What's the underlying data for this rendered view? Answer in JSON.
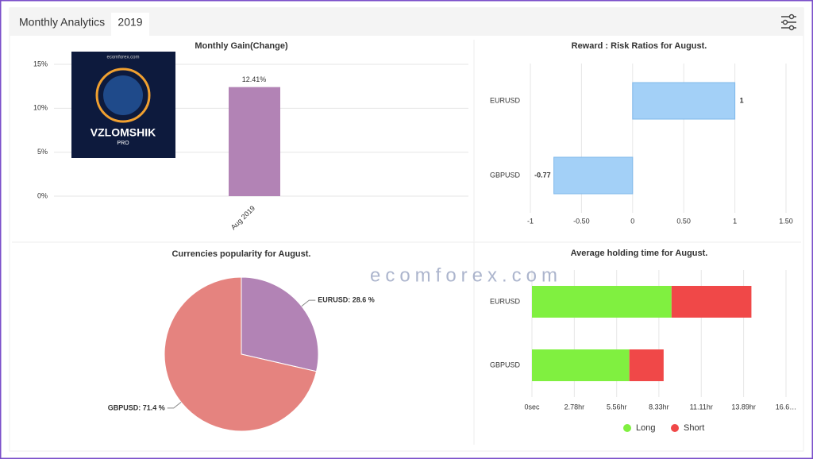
{
  "header": {
    "title": "Monthly Analytics",
    "tab": "2019"
  },
  "ad": {
    "site": "ecomforex.com",
    "title": "VZLOMSHIK",
    "subtitle": "PRO"
  },
  "watermark": {
    "text": "ecomforex.com"
  },
  "chart_data": [
    {
      "type": "bar",
      "title": "Monthly Gain(Change)",
      "categories": [
        "Aug 2019"
      ],
      "values": [
        12.41
      ],
      "value_labels": [
        "12.41%"
      ],
      "color": "#b283b5",
      "ylim": [
        0,
        15
      ],
      "yticks": [
        {
          "value": 0,
          "label": "0%"
        },
        {
          "value": 5,
          "label": "5%"
        },
        {
          "value": 10,
          "label": "10%"
        },
        {
          "value": 15,
          "label": "15%"
        }
      ],
      "grid": true
    },
    {
      "type": "hbar",
      "title": "Reward : Risk Ratios for August.",
      "categories": [
        "EURUSD",
        "GBPUSD"
      ],
      "values": [
        1,
        -0.77
      ],
      "color": "#a3d0f7",
      "xlim": [
        -1,
        1.5
      ],
      "xticks": [
        -1,
        {
          "value": -0.5,
          "label": "-0.50"
        },
        0,
        {
          "value": 0.5,
          "label": "0.50"
        },
        1,
        {
          "value": 1.5,
          "label": "1.50"
        }
      ],
      "grid": true
    },
    {
      "type": "pie",
      "title": "Currencies popularity for August.",
      "categories": [
        "EURUSD",
        "GBPUSD"
      ],
      "values": [
        28.6,
        71.4
      ],
      "value_labels": [
        "EURUSD: 28.6 %",
        "GBPUSD: 71.4 %"
      ],
      "colors": [
        "#b283b5",
        "#e5837f"
      ]
    },
    {
      "type": "stacked-hbar",
      "title": "Average holding time for August.",
      "categories": [
        "EURUSD",
        "GBPUSD"
      ],
      "series": [
        {
          "name": "Long",
          "color": "#80f040",
          "values": [
            9.16,
            6.39
          ]
        },
        {
          "name": "Short",
          "color": "#f04848",
          "values": [
            5.24,
            2.25
          ]
        }
      ],
      "xlim": [
        0,
        16.67
      ],
      "xticks": [
        {
          "value": 0,
          "label": "0sec"
        },
        {
          "value": 2.78,
          "label": "2.78hr"
        },
        {
          "value": 5.56,
          "label": "5.56hr"
        },
        {
          "value": 8.33,
          "label": "8.33hr"
        },
        {
          "value": 11.11,
          "label": "11.11hr"
        },
        {
          "value": 13.89,
          "label": "13.89hr"
        },
        {
          "value": 16.67,
          "label": "16.6…"
        }
      ],
      "grid": true,
      "legend": "bottom"
    }
  ]
}
